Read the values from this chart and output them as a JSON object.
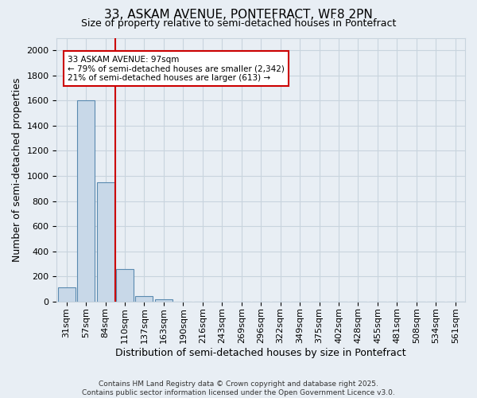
{
  "title_line1": "33, ASKAM AVENUE, PONTEFRACT, WF8 2PN",
  "title_line2": "Size of property relative to semi-detached houses in Pontefract",
  "xlabel": "Distribution of semi-detached houses by size in Pontefract",
  "ylabel": "Number of semi-detached properties",
  "categories": [
    "31sqm",
    "57sqm",
    "84sqm",
    "110sqm",
    "137sqm",
    "163sqm",
    "190sqm",
    "216sqm",
    "243sqm",
    "269sqm",
    "296sqm",
    "322sqm",
    "349sqm",
    "375sqm",
    "402sqm",
    "428sqm",
    "455sqm",
    "481sqm",
    "508sqm",
    "534sqm",
    "561sqm"
  ],
  "values": [
    110,
    1600,
    950,
    260,
    40,
    20,
    0,
    0,
    0,
    0,
    0,
    0,
    0,
    0,
    0,
    0,
    0,
    0,
    0,
    0,
    0
  ],
  "bar_color": "#c8d8e8",
  "bar_edge_color": "#5a8ab0",
  "vline_color": "#cc0000",
  "annotation_line1": "33 ASKAM AVENUE: 97sqm",
  "annotation_line2": "← 79% of semi-detached houses are smaller (2,342)",
  "annotation_line3": "21% of semi-detached houses are larger (613) →",
  "annotation_box_color": "#ffffff",
  "annotation_box_edge": "#cc0000",
  "ylim": [
    0,
    2100
  ],
  "yticks": [
    0,
    200,
    400,
    600,
    800,
    1000,
    1200,
    1400,
    1600,
    1800,
    2000
  ],
  "grid_color": "#c8d4de",
  "bg_color": "#e8eef4",
  "title_fontsize": 11,
  "subtitle_fontsize": 9,
  "footnote": "Contains HM Land Registry data © Crown copyright and database right 2025.\nContains public sector information licensed under the Open Government Licence v3.0."
}
